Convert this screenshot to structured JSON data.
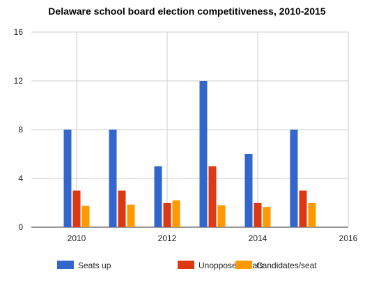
{
  "chart_data": {
    "type": "bar",
    "title": "Delaware school board election competitiveness, 2010-2015",
    "xlabel": "",
    "ylabel": "",
    "xlim": [
      2009,
      2016
    ],
    "ylim": [
      0,
      16
    ],
    "x_ticks": [
      "2010",
      "2012",
      "2014",
      "2016"
    ],
    "y_ticks": [
      "0",
      "4",
      "8",
      "12",
      "16"
    ],
    "x": [
      2010,
      2011,
      2012,
      2013,
      2014,
      2015
    ],
    "series": [
      {
        "name": "Seats up",
        "color": "#3366cc",
        "values": [
          8,
          8,
          5,
          12,
          6,
          8
        ]
      },
      {
        "name": "Unopposed seats",
        "color": "#dc3912",
        "values": [
          3,
          3,
          2,
          5,
          2,
          3
        ]
      },
      {
        "name": "Candidates/seat",
        "color": "#ff9900",
        "values": [
          1.75,
          1.85,
          2.2,
          1.8,
          1.65,
          2.0
        ]
      }
    ],
    "grid": true,
    "legend_position": "bottom"
  }
}
